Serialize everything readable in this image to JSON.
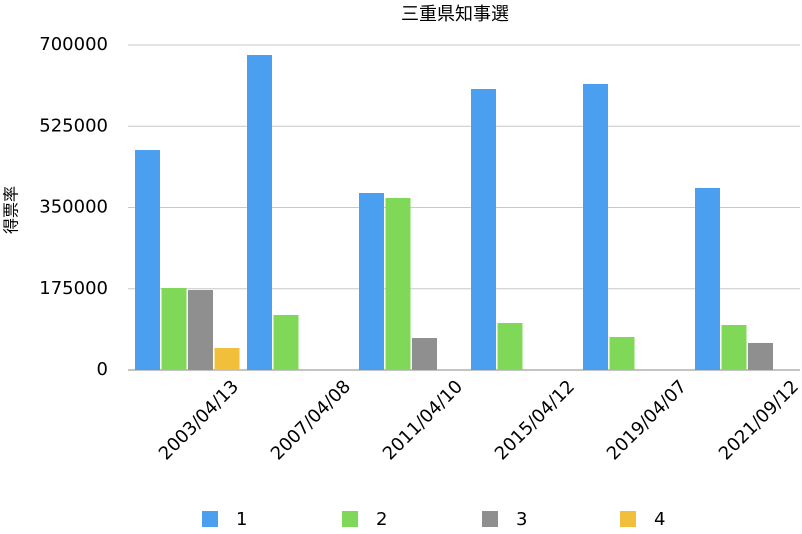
{
  "chart_data": {
    "type": "bar",
    "title": "三重県知事選",
    "y_label": "得票率",
    "categories": [
      "2003/04/13",
      "2007/04/08",
      "2011/04/10",
      "2015/04/12",
      "2019/04/07",
      "2021/09/12"
    ],
    "series": [
      {
        "name": "1",
        "color": "#4a9ff0",
        "values": [
          473800,
          678500,
          381200,
          605200,
          616000,
          392000
        ]
      },
      {
        "name": "2",
        "color": "#7fd858",
        "values": [
          176600,
          118500,
          370500,
          101200,
          71100,
          96900
        ]
      },
      {
        "name": "3",
        "color": "#8f8f8f",
        "values": [
          172300,
          null,
          68900,
          null,
          null,
          58200
        ]
      },
      {
        "name": "4",
        "color": "#f2bf3b",
        "values": [
          47400,
          null,
          null,
          null,
          null,
          null
        ]
      }
    ],
    "ylim": [
      0,
      700000
    ],
    "yticks": [
      0,
      175000,
      350000,
      525000,
      700000
    ],
    "grid": true
  }
}
